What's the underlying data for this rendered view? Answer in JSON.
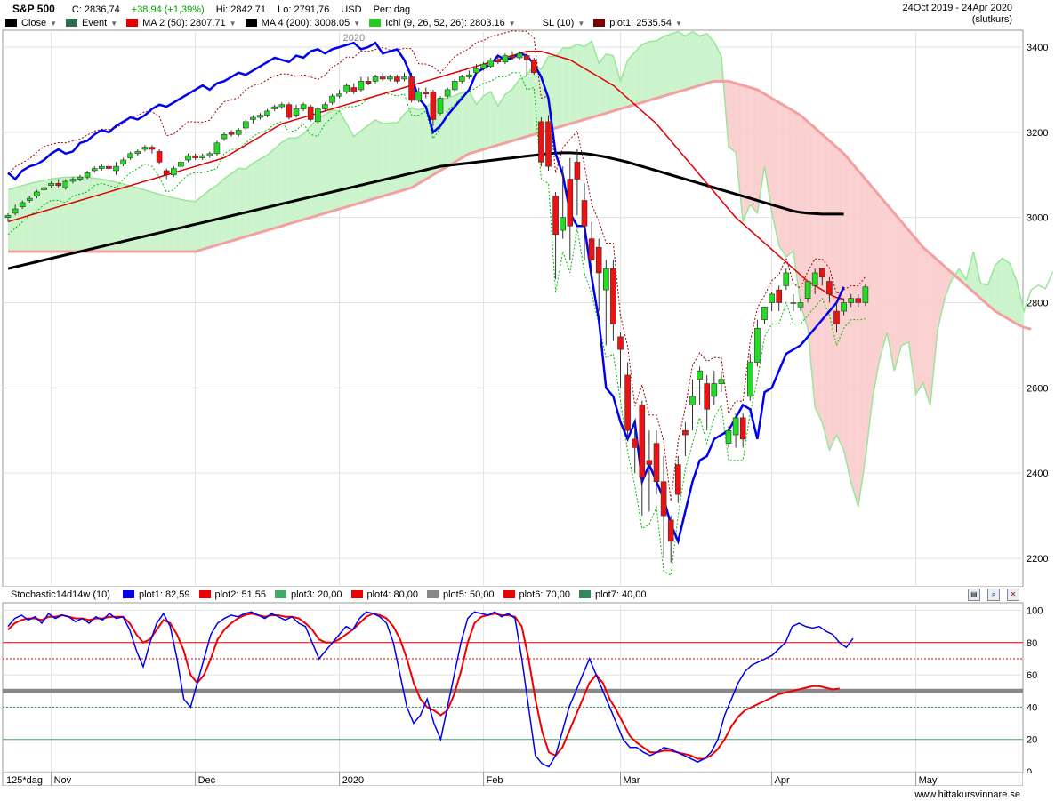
{
  "header": {
    "symbol": "S&P 500",
    "close": "C: 2836,74",
    "change": "+38,94 (+1,39%)",
    "high": "Hi: 2842,71",
    "low": "Lo: 2791,76",
    "currency": "USD",
    "period": "Per: dag",
    "date_range": "24Oct 2019 - 24Apr 2020",
    "price_type": "(slutkurs)"
  },
  "legend": [
    {
      "label": "Close",
      "color": "#000000"
    },
    {
      "label": "Event",
      "color": "#2e6b4f"
    },
    {
      "label": "MA 2 (50): 2807.71",
      "color": "#e00000"
    },
    {
      "label": "MA 4 (200): 3008.05",
      "color": "#000000"
    },
    {
      "label": "Ichi (9, 26, 52, 26): 2803.16",
      "color": "#22cc22"
    },
    {
      "label": "SL (10)",
      "color": "#ffffff"
    },
    {
      "label": "plot1: 2535.54",
      "color": "#7a0000"
    }
  ],
  "oscillator": {
    "title": "Stochastic14d14w (10)",
    "legend": [
      {
        "label": "plot1: 82,59",
        "color": "#0000ee"
      },
      {
        "label": "plot2: 51,55",
        "color": "#ee0000"
      },
      {
        "label": "plot3: 20,00",
        "color": "#44aa66"
      },
      {
        "label": "plot4: 80,00",
        "color": "#ee0000"
      },
      {
        "label": "plot5: 50,00",
        "color": "#888888"
      },
      {
        "label": "plot6: 70,00",
        "color": "#ee0000"
      },
      {
        "label": "plot7: 40,00",
        "color": "#2e8b57"
      }
    ]
  },
  "x_axis": {
    "scale_label": "125*dag",
    "months": [
      {
        "label": "Nov",
        "idx": 6
      },
      {
        "label": "Dec",
        "idx": 26
      },
      {
        "label": "2020",
        "idx": 46
      },
      {
        "label": "Feb",
        "idx": 66
      },
      {
        "label": "Mar",
        "idx": 85
      },
      {
        "label": "Apr",
        "idx": 106
      },
      {
        "label": "May",
        "idx": 126
      }
    ],
    "year_marker": "2020"
  },
  "footer": "www.hittakursvinnare.se",
  "chart_data": {
    "type": "candlestick",
    "y_ticks": [
      2200,
      2400,
      2600,
      2800,
      3000,
      3200,
      3400
    ],
    "osc_ticks": [
      0,
      20,
      40,
      60,
      80,
      100
    ],
    "candles": [
      [
        3000,
        3005,
        2990,
        3010
      ],
      [
        3010,
        3020,
        3005,
        3030
      ],
      [
        3025,
        3035,
        3020,
        3040
      ],
      [
        3040,
        3045,
        3035,
        3050
      ],
      [
        3050,
        3060,
        3045,
        3065
      ],
      [
        3065,
        3070,
        3060,
        3080
      ],
      [
        3075,
        3080,
        3070,
        3085
      ],
      [
        3080,
        3075,
        3070,
        3090
      ],
      [
        3070,
        3085,
        3065,
        3090
      ],
      [
        3085,
        3090,
        3080,
        3095
      ],
      [
        3090,
        3095,
        3085,
        3100
      ],
      [
        3095,
        3105,
        3090,
        3110
      ],
      [
        3110,
        3115,
        3105,
        3120
      ],
      [
        3115,
        3120,
        3110,
        3125
      ],
      [
        3120,
        3115,
        3105,
        3125
      ],
      [
        3110,
        3120,
        3100,
        3130
      ],
      [
        3125,
        3135,
        3120,
        3140
      ],
      [
        3140,
        3150,
        3135,
        3155
      ],
      [
        3150,
        3155,
        3145,
        3160
      ],
      [
        3160,
        3165,
        3155,
        3170
      ],
      [
        3165,
        3160,
        3150,
        3170
      ],
      [
        3155,
        3130,
        3125,
        3160
      ],
      [
        3110,
        3100,
        3090,
        3115
      ],
      [
        3100,
        3115,
        3095,
        3120
      ],
      [
        3120,
        3130,
        3115,
        3135
      ],
      [
        3135,
        3145,
        3130,
        3150
      ],
      [
        3145,
        3140,
        3135,
        3150
      ],
      [
        3140,
        3145,
        3135,
        3150
      ],
      [
        3145,
        3150,
        3140,
        3155
      ],
      [
        3150,
        3175,
        3145,
        3180
      ],
      [
        3185,
        3195,
        3180,
        3200
      ],
      [
        3200,
        3195,
        3190,
        3205
      ],
      [
        3195,
        3205,
        3190,
        3210
      ],
      [
        3210,
        3225,
        3205,
        3230
      ],
      [
        3230,
        3235,
        3220,
        3240
      ],
      [
        3235,
        3240,
        3230,
        3245
      ],
      [
        3240,
        3250,
        3235,
        3255
      ],
      [
        3255,
        3260,
        3250,
        3265
      ],
      [
        3260,
        3265,
        3255,
        3270
      ],
      [
        3265,
        3235,
        3230,
        3270
      ],
      [
        3240,
        3255,
        3235,
        3265
      ],
      [
        3255,
        3265,
        3250,
        3270
      ],
      [
        3260,
        3230,
        3225,
        3265
      ],
      [
        3225,
        3255,
        3220,
        3260
      ],
      [
        3255,
        3265,
        3250,
        3270
      ],
      [
        3270,
        3285,
        3265,
        3290
      ],
      [
        3285,
        3290,
        3280,
        3300
      ],
      [
        3295,
        3310,
        3290,
        3315
      ],
      [
        3305,
        3295,
        3290,
        3315
      ],
      [
        3300,
        3320,
        3295,
        3330
      ],
      [
        3320,
        3315,
        3310,
        3330
      ],
      [
        3320,
        3330,
        3315,
        3335
      ],
      [
        3330,
        3325,
        3320,
        3340
      ],
      [
        3325,
        3330,
        3320,
        3335
      ],
      [
        3330,
        3320,
        3315,
        3335
      ],
      [
        3325,
        3330,
        3320,
        3340
      ],
      [
        3330,
        3275,
        3270,
        3340
      ],
      [
        3275,
        3295,
        3270,
        3305
      ],
      [
        3295,
        3290,
        3280,
        3305
      ],
      [
        3295,
        3230,
        3215,
        3300
      ],
      [
        3245,
        3280,
        3240,
        3285
      ],
      [
        3285,
        3300,
        3280,
        3305
      ],
      [
        3300,
        3320,
        3295,
        3325
      ],
      [
        3320,
        3330,
        3315,
        3335
      ],
      [
        3330,
        3335,
        3325,
        3345
      ],
      [
        3340,
        3350,
        3335,
        3360
      ],
      [
        3350,
        3360,
        3345,
        3365
      ],
      [
        3355,
        3370,
        3350,
        3375
      ],
      [
        3370,
        3365,
        3360,
        3380
      ],
      [
        3365,
        3380,
        3360,
        3385
      ],
      [
        3380,
        3375,
        3370,
        3390
      ],
      [
        3375,
        3385,
        3370,
        3390
      ],
      [
        3380,
        3370,
        3330,
        3390
      ],
      [
        3370,
        3340,
        3335,
        3375
      ],
      [
        3225,
        3130,
        3120,
        3235
      ],
      [
        3225,
        3120,
        3110,
        3240
      ],
      [
        3050,
        2960,
        2855,
        3060
      ],
      [
        2970,
        3000,
        2950,
        3120
      ],
      [
        3090,
        2980,
        2900,
        3140
      ],
      [
        3130,
        3090,
        3005,
        3160
      ],
      [
        3040,
        2980,
        2900,
        3080
      ],
      [
        2950,
        2900,
        2850,
        2990
      ],
      [
        2930,
        2870,
        2780,
        2950
      ],
      [
        2830,
        2880,
        2700,
        2900
      ],
      [
        2880,
        2750,
        2710,
        2900
      ],
      [
        2720,
        2690,
        2600,
        2730
      ],
      [
        2630,
        2500,
        2480,
        2660
      ],
      [
        2480,
        2460,
        2400,
        2520
      ],
      [
        2560,
        2390,
        2300,
        2570
      ],
      [
        2430,
        2420,
        2310,
        2500
      ],
      [
        2470,
        2380,
        2350,
        2500
      ],
      [
        2380,
        2300,
        2200,
        2440
      ],
      [
        2290,
        2240,
        2190,
        2300
      ],
      [
        2420,
        2350,
        2330,
        2440
      ],
      [
        2500,
        2490,
        2440,
        2520
      ],
      [
        2560,
        2580,
        2500,
        2620
      ],
      [
        2620,
        2640,
        2560,
        2650
      ],
      [
        2610,
        2550,
        2500,
        2630
      ],
      [
        2580,
        2610,
        2560,
        2640
      ],
      [
        2610,
        2620,
        2590,
        2640
      ],
      [
        2470,
        2500,
        2460,
        2510
      ],
      [
        2490,
        2530,
        2460,
        2540
      ],
      [
        2530,
        2480,
        2460,
        2540
      ],
      [
        2580,
        2660,
        2570,
        2680
      ],
      [
        2660,
        2740,
        2650,
        2760
      ],
      [
        2760,
        2790,
        2750,
        2790
      ],
      [
        2800,
        2820,
        2780,
        2825
      ],
      [
        2830,
        2800,
        2780,
        2840
      ],
      [
        2840,
        2870,
        2830,
        2880
      ],
      [
        2800,
        2800,
        2780,
        2820
      ],
      [
        2790,
        2800,
        2780,
        2810
      ],
      [
        2810,
        2850,
        2800,
        2850
      ],
      [
        2840,
        2870,
        2820,
        2880
      ],
      [
        2880,
        2860,
        2840,
        2880
      ],
      [
        2850,
        2820,
        2800,
        2860
      ],
      [
        2780,
        2750,
        2730,
        2800
      ],
      [
        2780,
        2800,
        2770,
        2810
      ],
      [
        2800,
        2810,
        2790,
        2820
      ],
      [
        2810,
        2800,
        2790,
        2820
      ],
      [
        2800,
        2837,
        2792,
        2843
      ]
    ],
    "ma50": [
      2990,
      2995,
      3000,
      3005,
      3010,
      3015,
      3020,
      3025,
      3030,
      3035,
      3040,
      3045,
      3050,
      3055,
      3060,
      3065,
      3070,
      3075,
      3080,
      3085,
      3090,
      3095,
      3100,
      3105,
      3110,
      3115,
      3120,
      3125,
      3130,
      3135,
      3140,
      3150,
      3160,
      3170,
      3180,
      3190,
      3200,
      3210,
      3220,
      3225,
      3230,
      3235,
      3240,
      3245,
      3250,
      3255,
      3260,
      3265,
      3270,
      3275,
      3280,
      3285,
      3290,
      3295,
      3300,
      3305,
      3310,
      3315,
      3320,
      3325,
      3330,
      3335,
      3340,
      3345,
      3350,
      3355,
      3360,
      3365,
      3370,
      3375,
      3380,
      3385,
      3390,
      3390,
      3390,
      3385,
      3380,
      3375,
      3370,
      3360,
      3350,
      3340,
      3330,
      3320,
      3310,
      3295,
      3280,
      3265,
      3250,
      3235,
      3220,
      3200,
      3180,
      3160,
      3140,
      3120,
      3100,
      3080,
      3060,
      3040,
      3020,
      3000,
      2985,
      2970,
      2955,
      2940,
      2925,
      2910,
      2895,
      2880,
      2865,
      2850,
      2840,
      2830,
      2820,
      2812,
      2808
    ],
    "ma200": [
      2880,
      2884,
      2888,
      2892,
      2896,
      2900,
      2904,
      2908,
      2912,
      2916,
      2920,
      2924,
      2928,
      2932,
      2936,
      2940,
      2944,
      2948,
      2952,
      2956,
      2960,
      2964,
      2968,
      2972,
      2976,
      2980,
      2984,
      2988,
      2992,
      2996,
      3000,
      3004,
      3008,
      3012,
      3016,
      3020,
      3024,
      3028,
      3032,
      3036,
      3040,
      3044,
      3048,
      3052,
      3056,
      3060,
      3064,
      3068,
      3072,
      3076,
      3080,
      3084,
      3088,
      3092,
      3096,
      3100,
      3104,
      3108,
      3112,
      3116,
      3120,
      3122,
      3124,
      3126,
      3128,
      3130,
      3132,
      3134,
      3136,
      3138,
      3140,
      3142,
      3144,
      3146,
      3148,
      3150,
      3151,
      3152,
      3152,
      3151,
      3150,
      3148,
      3145,
      3142,
      3138,
      3134,
      3130,
      3125,
      3120,
      3115,
      3110,
      3105,
      3100,
      3095,
      3090,
      3085,
      3080,
      3075,
      3070,
      3065,
      3060,
      3055,
      3050,
      3045,
      3040,
      3035,
      3030,
      3025,
      3020,
      3015,
      3012,
      3010,
      3009,
      3008,
      3008,
      3008,
      3008
    ],
    "close_line": [
      3105,
      3090,
      3110,
      3120,
      3125,
      3135,
      3150,
      3160,
      3150,
      3155,
      3175,
      3180,
      3195,
      3205,
      3200,
      3215,
      3225,
      3235,
      3230,
      3240,
      3255,
      3265,
      3260,
      3270,
      3280,
      3290,
      3300,
      3310,
      3300,
      3315,
      3320,
      3330,
      3340,
      3335,
      3345,
      3355,
      3365,
      3375,
      3370,
      3365,
      3380,
      3375,
      3390,
      3395,
      3385,
      3395,
      3400,
      3405,
      3410,
      3395,
      3400,
      3410,
      3385,
      3390,
      3395,
      3370,
      3330,
      3280,
      3260,
      3200,
      3215,
      3240,
      3260,
      3280,
      3300,
      3340,
      3350,
      3360,
      3380,
      3370,
      3375,
      3385,
      3380,
      3360,
      3330,
      3280,
      3150,
      3100,
      3010,
      2980,
      2980,
      2860,
      2760,
      2600,
      2580,
      2520,
      2480,
      2520,
      2380,
      2420,
      2380,
      2340,
      2280,
      2240,
      2310,
      2380,
      2430,
      2440,
      2480,
      2490,
      2500,
      2530,
      2560,
      2550,
      2480,
      2590,
      2600,
      2640,
      2680,
      2690,
      2700,
      2720,
      2740,
      2760,
      2780,
      2800,
      2837
    ],
    "stoch_k": [
      90,
      95,
      97,
      94,
      96,
      92,
      98,
      95,
      97,
      96,
      93,
      95,
      92,
      96,
      94,
      98,
      95,
      96,
      88,
      75,
      65,
      80,
      92,
      98,
      90,
      70,
      45,
      40,
      55,
      70,
      85,
      92,
      95,
      97,
      96,
      98,
      99,
      97,
      95,
      98,
      96,
      94,
      96,
      92,
      90,
      80,
      70,
      75,
      80,
      85,
      90,
      88,
      95,
      99,
      98,
      96,
      92,
      80,
      60,
      40,
      30,
      35,
      45,
      30,
      20,
      40,
      60,
      80,
      95,
      99,
      98,
      97,
      99,
      96,
      98,
      95,
      70,
      40,
      10,
      5,
      3,
      10,
      25,
      40,
      50,
      60,
      70,
      60,
      50,
      40,
      30,
      20,
      15,
      15,
      12,
      10,
      12,
      15,
      14,
      12,
      10,
      8,
      6,
      8,
      12,
      20,
      35,
      45,
      55,
      62,
      66,
      68,
      70,
      72,
      76,
      80,
      90,
      92,
      90,
      89,
      90,
      87,
      85,
      80,
      77,
      82.59
    ],
    "stoch_d": [
      88,
      92,
      94,
      95,
      95,
      94,
      96,
      96,
      97,
      96,
      95,
      95,
      94,
      95,
      95,
      96,
      96,
      96,
      92,
      85,
      80,
      82,
      88,
      94,
      92,
      85,
      75,
      60,
      55,
      60,
      70,
      82,
      88,
      92,
      95,
      97,
      98,
      97,
      96,
      97,
      97,
      96,
      96,
      95,
      92,
      88,
      82,
      80,
      80,
      82,
      85,
      88,
      92,
      96,
      98,
      97,
      95,
      90,
      82,
      70,
      55,
      45,
      40,
      38,
      35,
      38,
      48,
      62,
      80,
      92,
      96,
      97,
      98,
      97,
      97,
      96,
      90,
      70,
      45,
      25,
      12,
      10,
      15,
      25,
      35,
      45,
      55,
      60,
      55,
      45,
      38,
      30,
      22,
      18,
      15,
      12,
      12,
      13,
      13,
      12,
      11,
      10,
      8,
      8,
      10,
      14,
      20,
      28,
      34,
      38,
      40,
      42,
      44,
      46,
      48,
      49,
      50,
      51,
      52,
      53,
      53,
      52,
      51,
      51.55
    ]
  }
}
